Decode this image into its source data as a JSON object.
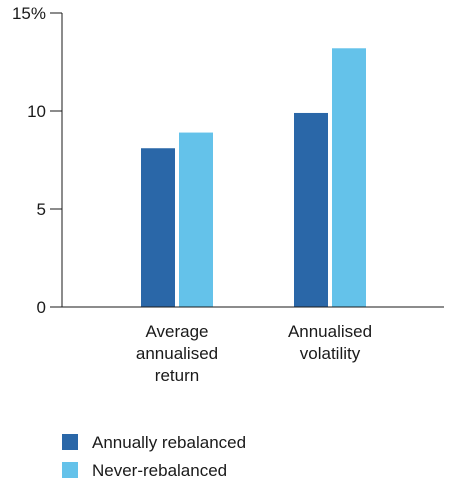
{
  "chart_data": {
    "type": "bar",
    "title": "",
    "xlabel": "",
    "ylabel": "",
    "ylim": [
      0,
      15
    ],
    "yticks": [
      0,
      5,
      10,
      15
    ],
    "ytick_labels": [
      "0",
      "5",
      "10",
      "15%"
    ],
    "categories": [
      [
        "Average",
        "annualised",
        "return"
      ],
      [
        "Annualised",
        "volatility"
      ]
    ],
    "series": [
      {
        "name": "Annually rebalanced",
        "color": "#2a67a8",
        "values": [
          8.1,
          9.9
        ]
      },
      {
        "name": "Never-rebalanced",
        "color": "#64c2ea",
        "values": [
          8.9,
          13.2
        ]
      }
    ],
    "grid": false,
    "legend_position": "bottom-left"
  }
}
